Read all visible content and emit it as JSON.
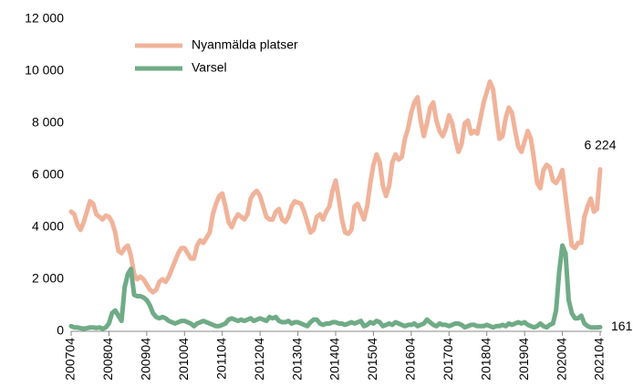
{
  "chart_data": {
    "type": "line",
    "categories": [
      "200704",
      null,
      null,
      null,
      null,
      null,
      null,
      null,
      null,
      null,
      null,
      null,
      "200804",
      null,
      null,
      null,
      null,
      null,
      null,
      null,
      null,
      null,
      null,
      null,
      "200904",
      null,
      null,
      null,
      null,
      null,
      null,
      null,
      null,
      null,
      null,
      null,
      "201004",
      null,
      null,
      null,
      null,
      null,
      null,
      null,
      null,
      null,
      null,
      null,
      "201104",
      null,
      null,
      null,
      null,
      null,
      null,
      null,
      null,
      null,
      null,
      null,
      "201204",
      null,
      null,
      null,
      null,
      null,
      null,
      null,
      null,
      null,
      null,
      null,
      "201304",
      null,
      null,
      null,
      null,
      null,
      null,
      null,
      null,
      null,
      null,
      null,
      "201404",
      null,
      null,
      null,
      null,
      null,
      null,
      null,
      null,
      null,
      null,
      null,
      "201504",
      null,
      null,
      null,
      null,
      null,
      null,
      null,
      null,
      null,
      null,
      null,
      "201604",
      null,
      null,
      null,
      null,
      null,
      null,
      null,
      null,
      null,
      null,
      null,
      "201704",
      null,
      null,
      null,
      null,
      null,
      null,
      null,
      null,
      null,
      null,
      null,
      "201804",
      null,
      null,
      null,
      null,
      null,
      null,
      null,
      null,
      null,
      null,
      null,
      "201904",
      null,
      null,
      null,
      null,
      null,
      null,
      null,
      null,
      null,
      null,
      null,
      "202004",
      null,
      null,
      null,
      null,
      null,
      null,
      null,
      null,
      null,
      null,
      null,
      "202104"
    ],
    "series": [
      {
        "name": "Nyanmälda platser",
        "color": "#f0b39a",
        "values": [
          4600,
          4500,
          4100,
          3900,
          4200,
          4600,
          5000,
          4900,
          4500,
          4400,
          4300,
          4450,
          4400,
          4200,
          3800,
          3100,
          3000,
          3200,
          3300,
          2900,
          2200,
          2000,
          2100,
          2000,
          1800,
          1600,
          1500,
          1600,
          1900,
          2000,
          1900,
          2100,
          2400,
          2700,
          3000,
          3200,
          3200,
          3000,
          2800,
          2800,
          3300,
          3500,
          3400,
          3600,
          3800,
          4500,
          4900,
          5200,
          5300,
          4800,
          4200,
          4000,
          4300,
          4500,
          4400,
          4300,
          4500,
          5100,
          5300,
          5400,
          5200,
          4800,
          4400,
          4300,
          4300,
          4600,
          4700,
          4300,
          4200,
          4400,
          4800,
          5000,
          4950,
          4900,
          4600,
          4200,
          3800,
          3900,
          4400,
          4500,
          4300,
          4600,
          4800,
          5400,
          5800,
          5100,
          4300,
          3800,
          3750,
          3900,
          4800,
          4900,
          4600,
          4300,
          4800,
          5700,
          6400,
          6800,
          6500,
          5600,
          5200,
          5600,
          6500,
          6800,
          6600,
          6700,
          7400,
          7800,
          8400,
          8800,
          9000,
          8100,
          7500,
          8000,
          8600,
          8800,
          8100,
          7700,
          7500,
          7800,
          8300,
          8000,
          7400,
          6900,
          7200,
          8000,
          8100,
          7600,
          7700,
          7600,
          8200,
          8800,
          9200,
          9600,
          9300,
          8300,
          7400,
          7500,
          8200,
          8600,
          8400,
          7700,
          7100,
          6900,
          7300,
          7700,
          7400,
          6600,
          5700,
          5500,
          6200,
          6400,
          6300,
          5800,
          5700,
          5900,
          6200,
          5200,
          4200,
          3300,
          3200,
          3400,
          3400,
          4400,
          4800,
          5100,
          4600,
          4700,
          6224
        ],
        "value_labels": [
          null,
          null,
          null,
          null,
          null,
          null,
          null,
          null,
          null,
          null,
          null,
          null,
          null,
          null,
          null,
          null,
          null,
          null,
          null,
          null,
          null,
          null,
          null,
          null,
          null,
          null,
          null,
          null,
          null,
          null,
          null,
          null,
          null,
          null,
          null,
          null,
          null,
          null,
          null,
          null,
          null,
          null,
          null,
          null,
          null,
          null,
          null,
          null,
          null,
          null,
          null,
          null,
          null,
          null,
          null,
          null,
          null,
          null,
          null,
          null,
          null,
          null,
          null,
          null,
          null,
          null,
          null,
          null,
          null,
          null,
          null,
          null,
          null,
          null,
          null,
          null,
          null,
          null,
          null,
          null,
          null,
          null,
          null,
          null,
          null,
          null,
          null,
          null,
          null,
          null,
          null,
          null,
          null,
          null,
          null,
          null,
          null,
          null,
          null,
          null,
          null,
          null,
          null,
          null,
          null,
          null,
          null,
          null,
          null,
          null,
          null,
          null,
          null,
          null,
          null,
          null,
          null,
          null,
          null,
          null,
          null,
          null,
          null,
          null,
          null,
          null,
          null,
          null,
          null,
          null,
          null,
          null,
          null,
          null,
          null,
          null,
          null,
          null,
          null,
          null,
          null,
          null,
          null,
          null,
          null,
          null,
          null,
          null,
          null,
          null,
          null,
          null,
          null,
          null,
          null,
          null,
          null,
          null,
          null,
          null,
          null,
          null,
          null,
          null,
          null,
          null,
          null,
          null,
          "6 224"
        ]
      },
      {
        "name": "Varsel",
        "color": "#6fab86",
        "values": [
          200,
          150,
          150,
          120,
          100,
          120,
          150,
          150,
          130,
          150,
          100,
          150,
          300,
          700,
          800,
          600,
          400,
          1700,
          2200,
          2400,
          1400,
          1350,
          1350,
          1300,
          1200,
          1000,
          700,
          550,
          500,
          550,
          500,
          400,
          350,
          300,
          350,
          400,
          400,
          350,
          300,
          200,
          300,
          350,
          400,
          350,
          300,
          250,
          200,
          200,
          250,
          300,
          450,
          500,
          450,
          400,
          450,
          400,
          450,
          500,
          400,
          450,
          500,
          450,
          400,
          550,
          500,
          550,
          400,
          350,
          350,
          400,
          300,
          350,
          350,
          300,
          250,
          200,
          350,
          450,
          450,
          300,
          250,
          300,
          300,
          350,
          350,
          300,
          300,
          250,
          300,
          350,
          300,
          350,
          400,
          200,
          250,
          350,
          300,
          400,
          350,
          200,
          250,
          300,
          250,
          350,
          300,
          250,
          200,
          250,
          250,
          300,
          200,
          250,
          300,
          450,
          350,
          250,
          200,
          300,
          250,
          250,
          200,
          250,
          300,
          300,
          250,
          150,
          200,
          250,
          250,
          200,
          200,
          200,
          250,
          200,
          150,
          200,
          200,
          250,
          200,
          300,
          250,
          300,
          350,
          300,
          350,
          250,
          200,
          150,
          200,
          300,
          200,
          150,
          250,
          300,
          800,
          2300,
          3300,
          3000,
          1200,
          700,
          500,
          500,
          600,
          300,
          200,
          150,
          150,
          150,
          161
        ],
        "value_labels": [
          null,
          null,
          null,
          null,
          null,
          null,
          null,
          null,
          null,
          null,
          null,
          null,
          null,
          null,
          null,
          null,
          null,
          null,
          null,
          null,
          null,
          null,
          null,
          null,
          null,
          null,
          null,
          null,
          null,
          null,
          null,
          null,
          null,
          null,
          null,
          null,
          null,
          null,
          null,
          null,
          null,
          null,
          null,
          null,
          null,
          null,
          null,
          null,
          null,
          null,
          null,
          null,
          null,
          null,
          null,
          null,
          null,
          null,
          null,
          null,
          null,
          null,
          null,
          null,
          null,
          null,
          null,
          null,
          null,
          null,
          null,
          null,
          null,
          null,
          null,
          null,
          null,
          null,
          null,
          null,
          null,
          null,
          null,
          null,
          null,
          null,
          null,
          null,
          null,
          null,
          null,
          null,
          null,
          null,
          null,
          null,
          null,
          null,
          null,
          null,
          null,
          null,
          null,
          null,
          null,
          null,
          null,
          null,
          null,
          null,
          null,
          null,
          null,
          null,
          null,
          null,
          null,
          null,
          null,
          null,
          null,
          null,
          null,
          null,
          null,
          null,
          null,
          null,
          null,
          null,
          null,
          null,
          null,
          null,
          null,
          null,
          null,
          null,
          null,
          null,
          null,
          null,
          null,
          null,
          null,
          null,
          null,
          null,
          null,
          null,
          null,
          null,
          null,
          null,
          null,
          null,
          null,
          null,
          null,
          null,
          null,
          null,
          null,
          null,
          null,
          null,
          null,
          null,
          "161"
        ]
      }
    ],
    "ylim": [
      0,
      12000
    ],
    "yticks": [
      0,
      {
        "value": 2000,
        "label": "2 000"
      },
      {
        "value": 4000,
        "label": "4 000"
      },
      {
        "value": 6000,
        "label": "6 000"
      },
      {
        "value": 8000,
        "label": "8 000"
      },
      {
        "value": 10000,
        "label": "10 000"
      },
      {
        "value": 12000,
        "label": "12 000"
      }
    ],
    "grid": false,
    "legend": "top-left"
  }
}
